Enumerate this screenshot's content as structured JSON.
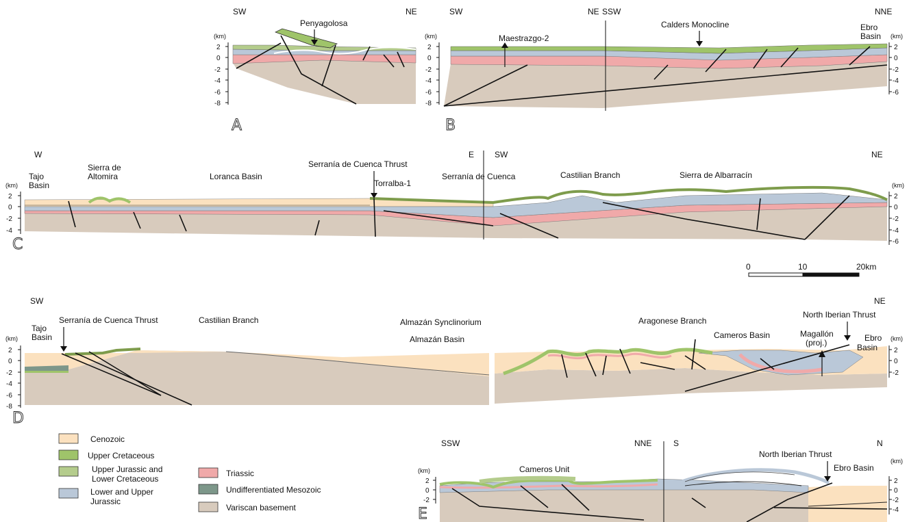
{
  "colors": {
    "cenozoic": "#fbe1bf",
    "upper_cretaceous": "#9fc46a",
    "upper_jurassic_lower_cretaceous": "#b4cc8c",
    "triassic": "#f0a9a9",
    "undiff_mesozoic": "#7d978a",
    "lower_upper_jurassic": "#bac8d8",
    "variscan_basement": "#d8cbbd"
  },
  "unit_km": "(km)",
  "sections": {
    "a": {
      "panel_label": "A",
      "left_dir": "SW",
      "right_dir": "NE",
      "ticks": [
        "2",
        "0",
        "-2",
        "-4",
        "-6",
        "-8"
      ],
      "labels": {
        "penyagolosa": "Penyagolosa"
      }
    },
    "b": {
      "panel_label": "B",
      "left_dir": "SW",
      "mid_left_dir": "NE",
      "mid_right_dir": "SSW",
      "right_dir": "NNE",
      "ticks_left": [
        "2",
        "0",
        "-2",
        "-4",
        "-6",
        "-8"
      ],
      "ticks_right": [
        "2",
        "0",
        "-2",
        "-4",
        "-6"
      ],
      "labels": {
        "maestrazgo": "Maestrazgo-2",
        "calders": "Calders Monocline",
        "ebro_1": "Ebro",
        "ebro_2": "Basin"
      }
    },
    "c": {
      "panel_label": "C",
      "left_dir": "W",
      "mid_left_dir": "E",
      "mid_right_dir": "SW",
      "right_dir": "NE",
      "ticks_left": [
        "2",
        "0",
        "-2",
        "-4"
      ],
      "ticks_right": [
        "2",
        "0",
        "-2",
        "-4",
        "-6"
      ],
      "labels": {
        "tajo_1": "Tajo",
        "tajo_2": "Basin",
        "altomira_1": "Sierra de",
        "altomira_2": "Altomira",
        "loranca": "Loranca Basin",
        "cuenca_thrust": "Serranía de Cuenca Thrust",
        "torralba": "Torralba-1",
        "serrania_cuenca": "Serranía de Cuenca",
        "castilian": "Castilian Branch",
        "albarracin": "Sierra de Albarracín"
      }
    },
    "scale_bar": {
      "t0": "0",
      "t1": "10",
      "t2": "20km"
    },
    "d": {
      "panel_label": "D",
      "left_dir": "SW",
      "right_dir": "NE",
      "ticks_left": [
        "2",
        "0",
        "-2",
        "-4",
        "-6",
        "-8"
      ],
      "ticks_right": [
        "2",
        "0",
        "-2"
      ],
      "labels": {
        "tajo_1": "Tajo",
        "tajo_2": "Basin",
        "cuenca_thrust": "Serranía de Cuenca Thrust",
        "castilian": "Castilian Branch",
        "almazan_sync": "Almazán Synclinorium",
        "almazan_basin": "Almazán Basin",
        "aragonese": "Aragonese Branch",
        "cameros_basin": "Cameros Basin",
        "magallon_1": "Magallón",
        "magallon_2": "(proj.)",
        "north_iberian": "North Iberian Thrust",
        "ebro_1": "Ebro",
        "ebro_2": "Basin"
      }
    },
    "e": {
      "panel_label": "E",
      "left_dir": "SSW",
      "mid_left_dir": "NNE",
      "mid_right_dir": "S",
      "right_dir": "N",
      "ticks_left": [
        "2",
        "0",
        "-2"
      ],
      "ticks_right": [
        "2",
        "0",
        "-2",
        "-4"
      ],
      "labels": {
        "cameros_unit": "Cameros Unit",
        "north_iberian": "North Iberian Thrust",
        "ebro_basin": "Ebro Basin"
      }
    }
  },
  "legend": {
    "cenozoic": "Cenozoic",
    "upper_cretaceous": "Upper Cretaceous",
    "ujlc_1": "Upper Jurassic and",
    "ujlc_2": "Lower Cretaceous",
    "luj_1": "Lower and Upper",
    "luj_2": "Jurassic",
    "triassic": "Triassic",
    "undiff": "Undifferentiated Mesozoic",
    "variscan": "Variscan basement"
  }
}
